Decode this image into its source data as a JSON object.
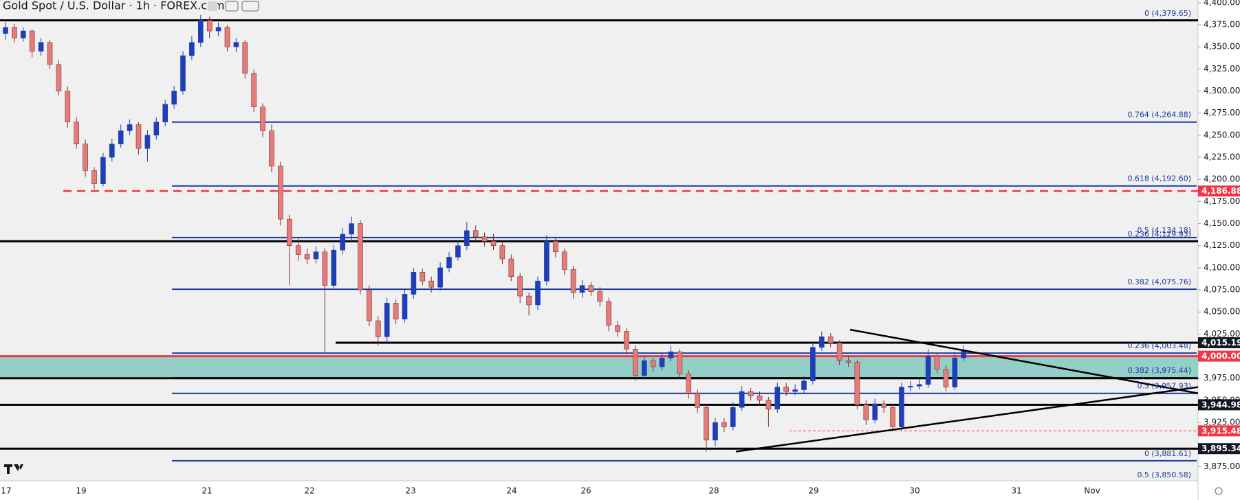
{
  "chart_data": {
    "type": "candlestick",
    "title": "Gold Spot / U.S. Dollar · 1h · FOREX.com",
    "up_color": "#1f3fb5",
    "down_color": "#e57b7b",
    "ylim": [
      3859,
      4403
    ],
    "yticks": [
      {
        "value": 4400,
        "label": "4,400.00"
      },
      {
        "value": 4375,
        "label": "4,375.00"
      },
      {
        "value": 4350,
        "label": "4,350.00"
      },
      {
        "value": 4325,
        "label": "4,325.00"
      },
      {
        "value": 4300,
        "label": "4,300.00"
      },
      {
        "value": 4275,
        "label": "4,275.00"
      },
      {
        "value": 4250,
        "label": "4,250.00"
      },
      {
        "value": 4225,
        "label": "4,225.00"
      },
      {
        "value": 4200,
        "label": "4,200.00"
      },
      {
        "value": 4175,
        "label": "4,175.00"
      },
      {
        "value": 4150,
        "label": "4,150.00"
      },
      {
        "value": 4125,
        "label": "4,125.00"
      },
      {
        "value": 4100,
        "label": "4,100.00"
      },
      {
        "value": 4075,
        "label": "4,075.00"
      },
      {
        "value": 4050,
        "label": "4,050.00"
      },
      {
        "value": 4025,
        "label": "4,025.00"
      },
      {
        "value": 3975,
        "label": "3,975.00"
      },
      {
        "value": 3950,
        "label": "3,950.00"
      },
      {
        "value": 3925,
        "label": "3,925.00"
      },
      {
        "value": 3875,
        "label": "3,875.00"
      }
    ],
    "x_labels": [
      "17",
      "19",
      "21",
      "22",
      "23",
      "24",
      "26",
      "28",
      "29",
      "30",
      "31",
      "Nov"
    ],
    "ohlc": [
      [
        4365,
        4378,
        4358,
        4372
      ],
      [
        4372,
        4376,
        4355,
        4360
      ],
      [
        4360,
        4372,
        4356,
        4368
      ],
      [
        4368,
        4370,
        4338,
        4345
      ],
      [
        4345,
        4360,
        4340,
        4355
      ],
      [
        4355,
        4358,
        4325,
        4330
      ],
      [
        4330,
        4335,
        4295,
        4300
      ],
      [
        4300,
        4305,
        4258,
        4265
      ],
      [
        4265,
        4270,
        4235,
        4240
      ],
      [
        4240,
        4245,
        4203,
        4210
      ],
      [
        4210,
        4214,
        4189,
        4195
      ],
      [
        4195,
        4230,
        4192,
        4225
      ],
      [
        4225,
        4246,
        4220,
        4240
      ],
      [
        4240,
        4262,
        4236,
        4255
      ],
      [
        4255,
        4268,
        4250,
        4262
      ],
      [
        4262,
        4265,
        4228,
        4235
      ],
      [
        4235,
        4256,
        4220,
        4250
      ],
      [
        4250,
        4270,
        4245,
        4265
      ],
      [
        4265,
        4290,
        4260,
        4285
      ],
      [
        4285,
        4306,
        4280,
        4300
      ],
      [
        4300,
        4345,
        4296,
        4340
      ],
      [
        4340,
        4362,
        4335,
        4355
      ],
      [
        4355,
        4386,
        4350,
        4380
      ],
      [
        4380,
        4384,
        4360,
        4368
      ],
      [
        4368,
        4378,
        4362,
        4372
      ],
      [
        4372,
        4375,
        4345,
        4350
      ],
      [
        4350,
        4360,
        4344,
        4355
      ],
      [
        4355,
        4358,
        4314,
        4320
      ],
      [
        4320,
        4324,
        4276,
        4282
      ],
      [
        4282,
        4286,
        4248,
        4255
      ],
      [
        4255,
        4262,
        4208,
        4215
      ],
      [
        4215,
        4220,
        4148,
        4155
      ],
      [
        4155,
        4160,
        4080,
        4125
      ],
      [
        4125,
        4135,
        4108,
        4115
      ],
      [
        4115,
        4122,
        4104,
        4110
      ],
      [
        4110,
        4124,
        4105,
        4118
      ],
      [
        4118,
        4122,
        4003,
        4080
      ],
      [
        4080,
        4126,
        4075,
        4120
      ],
      [
        4120,
        4145,
        4115,
        4138
      ],
      [
        4138,
        4158,
        4130,
        4150
      ],
      [
        4150,
        4154,
        4070,
        4075
      ],
      [
        4075,
        4080,
        4034,
        4040
      ],
      [
        4040,
        4045,
        4012,
        4022
      ],
      [
        4022,
        4066,
        4015,
        4060
      ],
      [
        4060,
        4064,
        4036,
        4042
      ],
      [
        4042,
        4076,
        4038,
        4070
      ],
      [
        4070,
        4100,
        4065,
        4095
      ],
      [
        4095,
        4099,
        4080,
        4085
      ],
      [
        4085,
        4090,
        4072,
        4078
      ],
      [
        4078,
        4106,
        4074,
        4100
      ],
      [
        4100,
        4118,
        4095,
        4112
      ],
      [
        4112,
        4130,
        4108,
        4125
      ],
      [
        4125,
        4152,
        4120,
        4142
      ],
      [
        4142,
        4148,
        4130,
        4135
      ],
      [
        4135,
        4140,
        4124,
        4130
      ],
      [
        4130,
        4138,
        4120,
        4125
      ],
      [
        4125,
        4130,
        4104,
        4110
      ],
      [
        4110,
        4115,
        4085,
        4090
      ],
      [
        4090,
        4094,
        4060,
        4068
      ],
      [
        4068,
        4072,
        4046,
        4058
      ],
      [
        4058,
        4090,
        4052,
        4085
      ],
      [
        4085,
        4137,
        4080,
        4130
      ],
      [
        4130,
        4134,
        4112,
        4118
      ],
      [
        4118,
        4122,
        4092,
        4098
      ],
      [
        4098,
        4102,
        4065,
        4072
      ],
      [
        4072,
        4086,
        4066,
        4080
      ],
      [
        4080,
        4084,
        4068,
        4073
      ],
      [
        4073,
        4078,
        4056,
        4062
      ],
      [
        4062,
        4066,
        4028,
        4035
      ],
      [
        4035,
        4040,
        4022,
        4028
      ],
      [
        4028,
        4032,
        4002,
        4008
      ],
      [
        4008,
        4012,
        3972,
        3978
      ],
      [
        3978,
        4000,
        3974,
        3995
      ],
      [
        3995,
        3998,
        3982,
        3988
      ],
      [
        3988,
        4004,
        3984,
        3998
      ],
      [
        3998,
        4012,
        3994,
        4005
      ],
      [
        4005,
        4008,
        3975,
        3980
      ],
      [
        3980,
        3984,
        3952,
        3958
      ],
      [
        3958,
        3962,
        3936,
        3942
      ],
      [
        3942,
        3946,
        3892,
        3905
      ],
      [
        3905,
        3930,
        3898,
        3925
      ],
      [
        3925,
        3930,
        3914,
        3920
      ],
      [
        3920,
        3948,
        3916,
        3942
      ],
      [
        3942,
        3966,
        3938,
        3960
      ],
      [
        3960,
        3964,
        3950,
        3955
      ],
      [
        3955,
        3960,
        3945,
        3950
      ],
      [
        3950,
        3954,
        3920,
        3940
      ],
      [
        3940,
        3970,
        3936,
        3965
      ],
      [
        3965,
        3970,
        3955,
        3960
      ],
      [
        3960,
        3968,
        3956,
        3962
      ],
      [
        3962,
        3978,
        3958,
        3972
      ],
      [
        3972,
        4016,
        3968,
        4010
      ],
      [
        4010,
        4028,
        4006,
        4022
      ],
      [
        4022,
        4026,
        4010,
        4015
      ],
      [
        4015,
        4018,
        3990,
        3995
      ],
      [
        3995,
        4000,
        3988,
        3993
      ],
      [
        3993,
        3996,
        3940,
        3945
      ],
      [
        3945,
        3950,
        3922,
        3928
      ],
      [
        3928,
        3952,
        3924,
        3946
      ],
      [
        3946,
        3950,
        3936,
        3942
      ],
      [
        3942,
        3946,
        3915,
        3920
      ],
      [
        3920,
        3970,
        3916,
        3965
      ],
      [
        3965,
        3972,
        3960,
        3966
      ],
      [
        3966,
        3974,
        3962,
        3968
      ],
      [
        3968,
        4008,
        3964,
        4000
      ],
      [
        4000,
        4004,
        3980,
        3985
      ],
      [
        3985,
        3990,
        3960,
        3965
      ],
      [
        3965,
        4005,
        3962,
        3998
      ],
      [
        3998,
        4012,
        3994,
        4006
      ]
    ],
    "zone": [
      3975,
      4000
    ],
    "zone_color": "#93cfc6",
    "levels": [
      {
        "value": 4380,
        "color": "#000000"
      },
      {
        "value": 4130,
        "color": "#000000"
      },
      {
        "value": 4015.19,
        "color": "#000000"
      },
      {
        "value": 3975,
        "color": "#000000"
      },
      {
        "value": 3944.98,
        "color": "#000000"
      },
      {
        "value": 3895.34,
        "color": "#000000"
      },
      {
        "value": 4000,
        "color": "#f23645"
      }
    ],
    "fib_color": "#1a3aa0",
    "fib_levels": [
      {
        "value": 4379.65,
        "label": "0 (4,379.65)"
      },
      {
        "value": 4264.88,
        "label": "0.764 (4,264.88)"
      },
      {
        "value": 4192.6,
        "label": "0.618 (4,192.60)"
      },
      {
        "value": 4134.18,
        "label": "0.5 (4,134.18)"
      },
      {
        "value": 4129.93,
        "label": "0.236 (4,129.93)"
      },
      {
        "value": 4075.76,
        "label": "0.382 (4,075.76)"
      },
      {
        "value": 4003.48,
        "label": "0.236 (4,003.48)"
      },
      {
        "value": 3975.44,
        "label": "0.382 (3,975.44)"
      },
      {
        "value": 3957.93,
        "label": "0.5 (3,957.93)"
      },
      {
        "value": 3881.61,
        "label": "0 (3,881.61)"
      },
      {
        "value": 3850.58,
        "label": "0.5 (3,850.58)"
      }
    ],
    "dashed_levels": [
      {
        "value": 4186.88,
        "color": "#f23645"
      },
      {
        "value": 3915.48,
        "color": "#f23645"
      }
    ],
    "trendlines": [
      [
        4030,
        3958
      ],
      [
        3892,
        3965
      ]
    ],
    "price_tags": [
      {
        "value": 4186.88,
        "label": "4,186.88",
        "color": "#f23645"
      },
      {
        "value": 4015.19,
        "label": "4,015.19",
        "color": "#131722"
      },
      {
        "value": 4000,
        "label": "4,000.00",
        "color": "#f23645"
      },
      {
        "value": 3944.98,
        "label": "3,944.98",
        "color": "#131722"
      },
      {
        "value": 3915.48,
        "label": "3,915.48",
        "color": "#f23645"
      },
      {
        "value": 3895.34,
        "label": "3,895.34",
        "color": "#131722"
      }
    ]
  }
}
